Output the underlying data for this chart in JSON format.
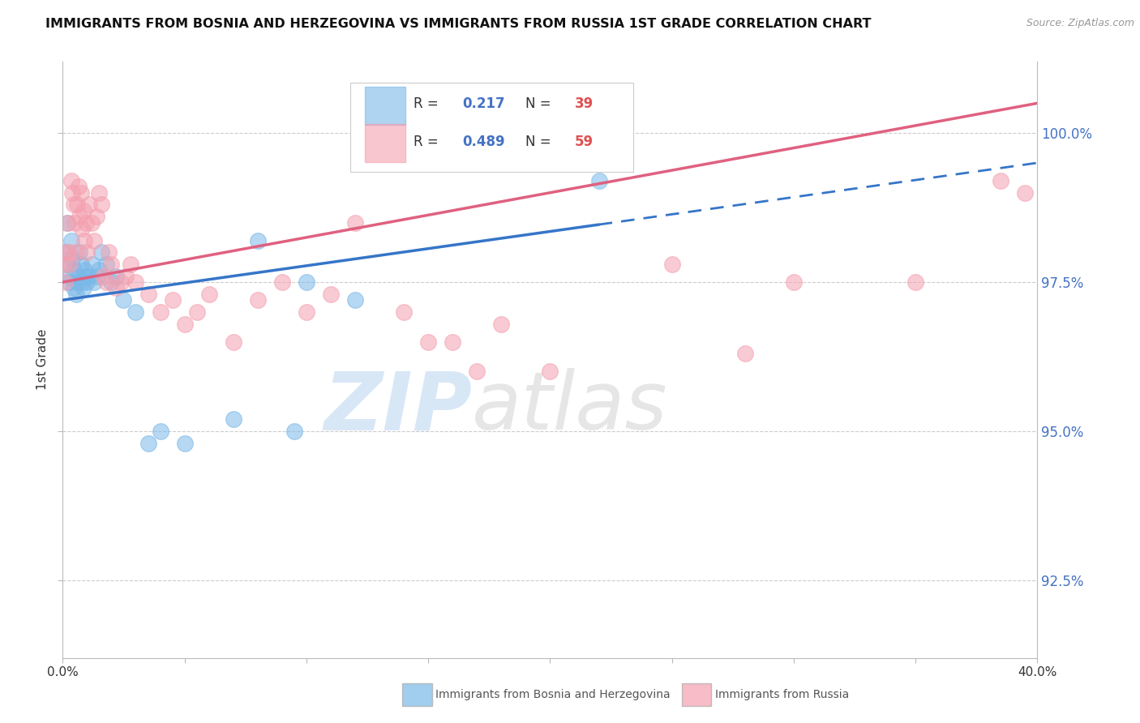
{
  "title": "IMMIGRANTS FROM BOSNIA AND HERZEGOVINA VS IMMIGRANTS FROM RUSSIA 1ST GRADE CORRELATION CHART",
  "source": "Source: ZipAtlas.com",
  "ylabel": "1st Grade",
  "y_ticks": [
    92.5,
    95.0,
    97.5,
    100.0
  ],
  "y_tick_labels": [
    "92.5%",
    "95.0%",
    "97.5%",
    "100.0%"
  ],
  "xlim": [
    0.0,
    40.0
  ],
  "ylim": [
    91.2,
    101.2
  ],
  "legend_r_blue": "0.217",
  "legend_n_blue": "39",
  "legend_r_pink": "0.489",
  "legend_n_pink": "59",
  "color_blue": "#7ab8e8",
  "color_pink": "#f4a0b0",
  "color_line_blue": "#3575c8",
  "color_line_pink": "#e06080",
  "watermark_zip": "ZIP",
  "watermark_atlas": "atlas",
  "blue_x": [
    0.1,
    0.15,
    0.2,
    0.25,
    0.3,
    0.35,
    0.4,
    0.45,
    0.5,
    0.55,
    0.6,
    0.65,
    0.7,
    0.75,
    0.8,
    0.85,
    0.9,
    0.95,
    1.0,
    1.1,
    1.2,
    1.3,
    1.4,
    1.5,
    1.6,
    1.8,
    2.0,
    2.2,
    2.5,
    3.0,
    3.5,
    4.0,
    5.0,
    7.0,
    8.0,
    9.5,
    10.0,
    12.0,
    22.0
  ],
  "blue_y": [
    98.0,
    97.8,
    98.5,
    97.5,
    97.6,
    98.2,
    97.9,
    97.4,
    97.7,
    97.3,
    97.5,
    97.6,
    98.0,
    97.8,
    97.5,
    97.4,
    97.7,
    97.6,
    97.5,
    97.6,
    97.8,
    97.5,
    97.6,
    97.7,
    98.0,
    97.8,
    97.5,
    97.6,
    97.2,
    97.0,
    94.8,
    95.0,
    94.8,
    95.2,
    98.2,
    95.0,
    97.5,
    97.2,
    99.2
  ],
  "pink_x": [
    0.05,
    0.1,
    0.15,
    0.2,
    0.25,
    0.3,
    0.35,
    0.4,
    0.45,
    0.5,
    0.55,
    0.6,
    0.65,
    0.7,
    0.75,
    0.8,
    0.85,
    0.9,
    0.95,
    1.0,
    1.1,
    1.2,
    1.3,
    1.4,
    1.5,
    1.6,
    1.7,
    1.8,
    1.9,
    2.0,
    2.2,
    2.4,
    2.6,
    2.8,
    3.0,
    3.5,
    4.0,
    4.5,
    5.0,
    5.5,
    6.0,
    7.0,
    8.0,
    9.0,
    10.0,
    11.0,
    12.0,
    14.0,
    15.0,
    16.0,
    17.0,
    18.0,
    20.0,
    25.0,
    28.0,
    30.0,
    35.0,
    38.5,
    39.5
  ],
  "pink_y": [
    97.8,
    97.5,
    98.0,
    98.5,
    98.0,
    97.8,
    99.2,
    99.0,
    98.8,
    98.5,
    98.0,
    98.8,
    99.1,
    98.6,
    99.0,
    98.4,
    98.7,
    98.2,
    98.5,
    98.0,
    98.8,
    98.5,
    98.2,
    98.6,
    99.0,
    98.8,
    97.6,
    97.5,
    98.0,
    97.8,
    97.4,
    97.5,
    97.6,
    97.8,
    97.5,
    97.3,
    97.0,
    97.2,
    96.8,
    97.0,
    97.3,
    96.5,
    97.2,
    97.5,
    97.0,
    97.3,
    98.5,
    97.0,
    96.5,
    96.5,
    96.0,
    96.8,
    96.0,
    97.8,
    96.3,
    97.5,
    97.5,
    99.2,
    99.0
  ],
  "blue_trend_x0": 0.0,
  "blue_trend_x1": 40.0,
  "blue_trend_y0": 97.2,
  "blue_trend_y1": 99.5,
  "pink_trend_x0": 0.0,
  "pink_trend_x1": 40.0,
  "pink_trend_y0": 97.5,
  "pink_trend_y1": 100.5,
  "blue_solid_end_x": 22.0,
  "pink_solid_end_x": 39.5
}
